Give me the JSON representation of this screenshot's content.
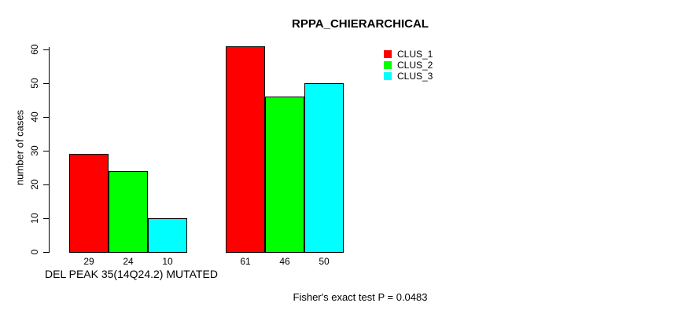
{
  "chart_data": {
    "type": "bar",
    "title": "RPPA_CHIERARCHICAL",
    "ylabel": "number of cases",
    "xlabel": "DEL PEAK 35(14Q24.2) MUTATED",
    "ylim": [
      0,
      61
    ],
    "yticks": [
      0,
      10,
      20,
      30,
      40,
      50,
      60
    ],
    "grid": false,
    "legend_position": "top-right",
    "series": [
      {
        "name": "CLUS_1",
        "color": "#ff0000",
        "values": [
          29,
          61
        ]
      },
      {
        "name": "CLUS_2",
        "color": "#00ff00",
        "values": [
          24,
          46
        ]
      },
      {
        "name": "CLUS_3",
        "color": "#00ffff",
        "values": [
          10,
          50
        ]
      }
    ],
    "bar_value_labels": [
      [
        "29",
        "24",
        "10"
      ],
      [
        "61",
        "46",
        "50"
      ]
    ]
  },
  "legend": {
    "items": [
      {
        "label": "CLUS_1",
        "color": "#ff0000"
      },
      {
        "label": "CLUS_2",
        "color": "#00ff00"
      },
      {
        "label": "CLUS_3",
        "color": "#00ffff"
      }
    ]
  },
  "annotations": {
    "fisher_test": "Fisher's exact test P = 0.0483"
  }
}
